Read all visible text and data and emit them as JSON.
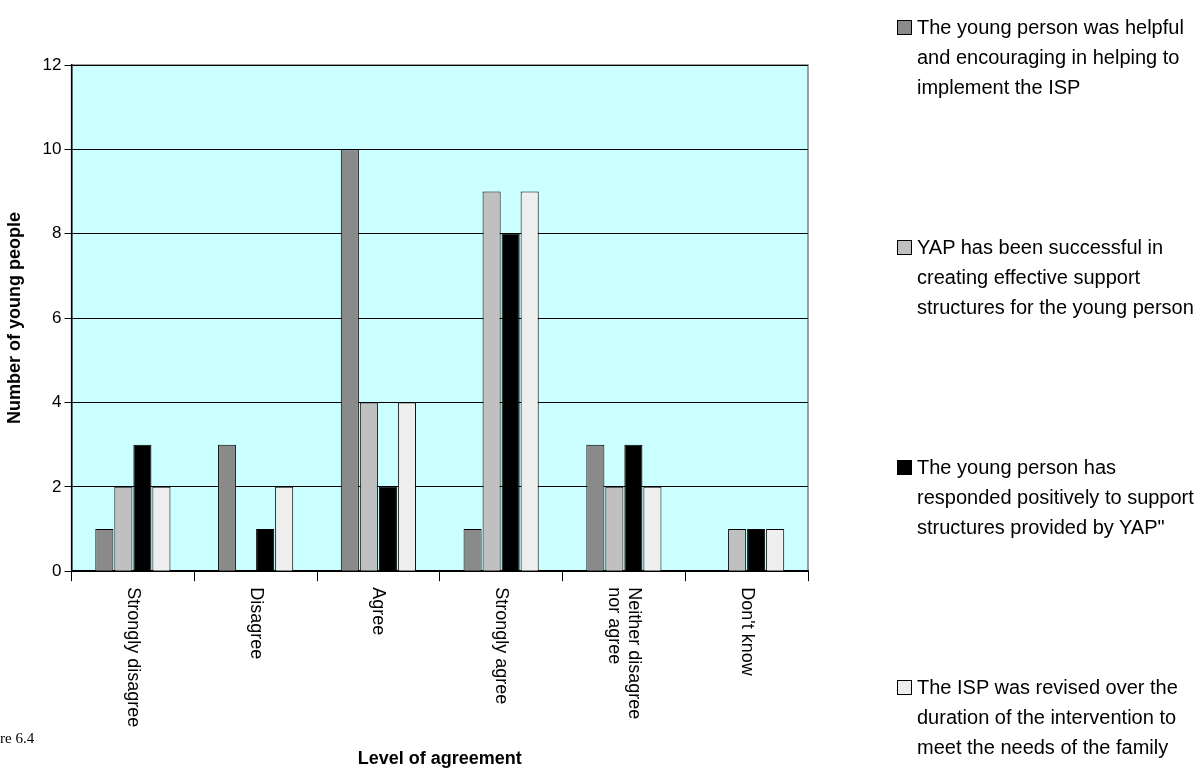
{
  "chart_data": {
    "type": "bar",
    "xlabel": "Level of agreement",
    "ylabel": "Number of young people",
    "categories": [
      "Strongly disagree",
      "Disagree",
      "Agree",
      "Strongly agree",
      "Neither disagree nor agree",
      "Don't know"
    ],
    "series": [
      {
        "name": "The young person was helpful and encouraging in helping to implement the ISP",
        "color": "#8a8a8a",
        "values": [
          1,
          3,
          10,
          1,
          3,
          0
        ]
      },
      {
        "name": "YAP has been successful in creating effective support structures for the young person",
        "color": "#c0c0c0",
        "values": [
          2,
          0,
          4,
          9,
          2,
          1
        ]
      },
      {
        "name": "The young person has responded positively to support structures provided by YAP\"",
        "color": "#000000",
        "values": [
          3,
          1,
          2,
          8,
          3,
          1
        ]
      },
      {
        "name": "The ISP was revised over the duration of the intervention to meet the needs of the family",
        "color": "#eeeeee",
        "values": [
          2,
          2,
          4,
          9,
          2,
          1
        ]
      }
    ],
    "ylim": [
      0,
      12
    ],
    "yticks": [
      0,
      2,
      4,
      6,
      8,
      10,
      12
    ],
    "grid": "y",
    "legend": "right",
    "annotations": [
      "re 6.4"
    ]
  }
}
